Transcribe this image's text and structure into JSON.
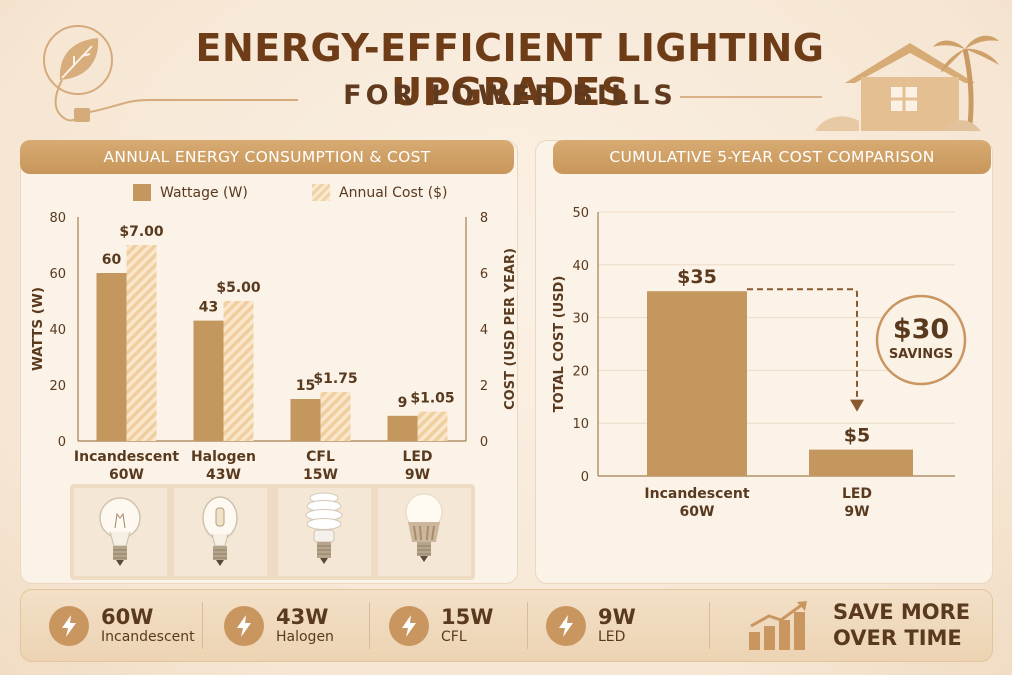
{
  "header": {
    "title": "ENERGY-EFFICIENT LIGHTING UPGRADES",
    "subtitle": "FOR LOWER BILLS"
  },
  "colors": {
    "bar_primary": "#c4975f",
    "bar_hatch": "#f1d3a9",
    "text_dark": "#5a3a1e",
    "accent": "#c99660"
  },
  "chart_data": [
    {
      "type": "bar",
      "title": "ANNUAL ENERGY CONSUMPTION & COST",
      "categories": [
        "Incandescent",
        "Halogen",
        "CFL",
        "LED"
      ],
      "category_sublabels": [
        "60W",
        "43W",
        "15W",
        "9W"
      ],
      "series": [
        {
          "name": "Wattage (W)",
          "axis": "left",
          "values": [
            60,
            43,
            15,
            9
          ],
          "labels": [
            "60",
            "43",
            "15",
            "9"
          ]
        },
        {
          "name": "Annual Cost ($)",
          "axis": "right",
          "values": [
            7.0,
            5.0,
            1.75,
            1.05
          ],
          "labels": [
            "$7.00",
            "$5.00",
            "$1.75",
            "$1.05"
          ]
        }
      ],
      "ylabel": "WATTS (W)",
      "ylim": [
        0,
        80
      ],
      "yticks": [
        0,
        20,
        40,
        60,
        80
      ],
      "y2label": "COST (USD PER YEAR)",
      "y2lim": [
        0,
        8
      ],
      "y2ticks": [
        0,
        2,
        4,
        6,
        8
      ],
      "legend": "top"
    },
    {
      "type": "bar",
      "title": "CUMULATIVE 5-YEAR COST COMPARISON",
      "categories": [
        "Incandescent",
        "LED"
      ],
      "category_sublabels": [
        "60W",
        "9W"
      ],
      "values": [
        35,
        5
      ],
      "labels": [
        "$35",
        "$5"
      ],
      "ylabel": "TOTAL COST (USD)",
      "ylim": [
        0,
        50
      ],
      "yticks": [
        0,
        10,
        20,
        30,
        40,
        50
      ],
      "grid": true,
      "annotation": {
        "value": "$30",
        "label": "SAVINGS"
      }
    }
  ],
  "bulb_icons": [
    "incandescent-bulb-icon",
    "halogen-bulb-icon",
    "cfl-bulb-icon",
    "led-bulb-icon"
  ],
  "footer": {
    "stats": [
      {
        "watt": "60W",
        "label": "Incandescent"
      },
      {
        "watt": "43W",
        "label": "Halogen"
      },
      {
        "watt": "15W",
        "label": "CFL"
      },
      {
        "watt": "9W",
        "label": "LED"
      }
    ],
    "cta_line1": "SAVE MORE",
    "cta_line2": "OVER TIME"
  }
}
